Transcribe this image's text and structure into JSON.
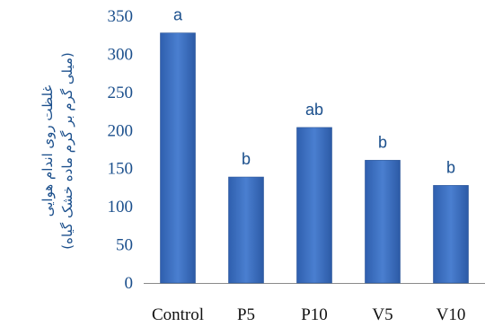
{
  "chart_data": {
    "type": "bar",
    "categories": [
      "Control",
      "P5",
      "P10",
      "V5",
      "V10"
    ],
    "values": [
      328,
      139,
      204,
      161,
      128
    ],
    "data_labels": [
      "a",
      "b",
      "ab",
      "b",
      "b"
    ],
    "ylabel_line1": "غلظت روی اندام هوایی",
    "ylabel_line2": "(میلی گرم بر گرم ماده خشک گیاه)",
    "ylim": [
      0,
      350
    ],
    "yticks": [
      "0",
      "50",
      "100",
      "150",
      "200",
      "250",
      "300",
      "350"
    ],
    "grid": false,
    "bar_color": "#3b6fc4"
  }
}
